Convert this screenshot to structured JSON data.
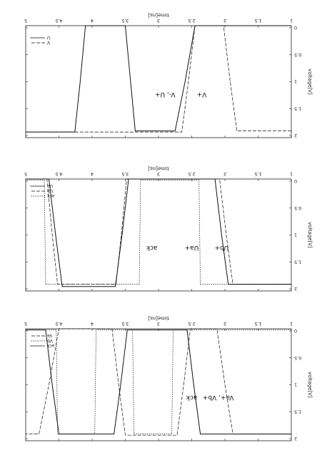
{
  "chart_data": [
    {
      "type": "line",
      "xlabel": "time[ns]",
      "ylabel": "voltage[V]",
      "xlim": [
        1,
        5
      ],
      "ylim": [
        0,
        5
      ],
      "x_ticks": [
        "1",
        "1.5",
        "2",
        "2.5",
        "3",
        "3.5",
        "4",
        "4.5",
        "5"
      ],
      "y_ticks": [
        "0",
        "0.5",
        "1",
        "1.5",
        "2"
      ],
      "annotations": [
        {
          "text": "Va+, Vb+",
          "x": 2.1,
          "y": 3.0
        },
        {
          "text": "ack",
          "x": 2.5,
          "y": 3.0
        }
      ],
      "legend": "bottom-right",
      "series": [
        {
          "name": "ack",
          "style": "solid",
          "x": [
            1.0,
            2.37,
            2.47,
            2.57,
            3.47,
            3.57,
            3.67,
            4.5,
            4.6,
            4.7,
            5.0
          ],
          "y": [
            4.7,
            4.7,
            2.5,
            0.05,
            0.05,
            2.5,
            4.7,
            4.7,
            2.5,
            0.05,
            0.05
          ]
        },
        {
          "name": "Vb",
          "style": "dotted",
          "x": [
            1.0,
            2.78,
            2.8,
            3.37,
            3.39,
            3.94,
            3.96,
            4.52,
            4.54,
            5.0
          ],
          "y": [
            0.05,
            0.05,
            4.7,
            4.7,
            0.05,
            0.05,
            4.7,
            4.7,
            0.05,
            0.05
          ]
        },
        {
          "name": "Va",
          "style": "dashed",
          "x": [
            1.0,
            1.88,
            2.0,
            2.12,
            2.52,
            2.62,
            2.72,
            3.5,
            3.6,
            3.7,
            4.5,
            4.65,
            4.8,
            5.0
          ],
          "y": [
            4.7,
            4.7,
            2.5,
            0.0,
            0.0,
            2.5,
            4.75,
            4.75,
            2.5,
            0.0,
            0.0,
            2.5,
            4.7,
            4.7
          ]
        }
      ]
    },
    {
      "type": "line",
      "xlabel": "time[ns]",
      "ylabel": "voltage[V]",
      "xlim": [
        1,
        5
      ],
      "ylim": [
        0,
        5
      ],
      "x_ticks": [
        "1",
        "1.5",
        "2",
        "2.5",
        "3",
        "3.5",
        "4",
        "4.5",
        "5"
      ],
      "y_ticks": [
        "0",
        "0.5",
        "1",
        "1.5",
        "2"
      ],
      "annotations": [
        {
          "text": "Ub+",
          "x": 2.05,
          "y": 3.0
        },
        {
          "text": "Ua+",
          "x": 2.5,
          "y": 3.0
        },
        {
          "text": "ack",
          "x": 3.1,
          "y": 3.0
        }
      ],
      "legend": "bottom-right",
      "series": [
        {
          "name": "ack",
          "style": "dotted",
          "x": [
            1.0,
            2.37,
            2.39,
            3.27,
            3.29,
            4.7,
            4.72,
            5.0
          ],
          "y": [
            4.7,
            4.7,
            0.05,
            0.05,
            4.7,
            4.7,
            0.05,
            0.05
          ]
        },
        {
          "name": "Ub",
          "style": "dashed",
          "x": [
            1.0,
            1.88,
            1.98,
            2.08,
            3.48,
            3.56,
            3.64,
            4.52,
            4.6,
            4.68,
            5.0
          ],
          "y": [
            4.7,
            4.7,
            2.5,
            0.0,
            0.0,
            2.5,
            4.7,
            4.7,
            2.5,
            0.0,
            0.0
          ]
        },
        {
          "name": "Ua",
          "style": "solid",
          "x": [
            1.0,
            1.95,
            2.05,
            2.15,
            3.45,
            3.55,
            3.65,
            4.45,
            4.55,
            4.65,
            5.0
          ],
          "y": [
            4.7,
            4.7,
            2.5,
            0.0,
            0.0,
            2.5,
            4.8,
            4.8,
            2.5,
            0.0,
            0.0
          ]
        }
      ]
    },
    {
      "type": "line",
      "xlabel": "time[ns]",
      "ylabel": "voltage[V]",
      "xlim": [
        1,
        5
      ],
      "ylim": [
        0,
        5
      ],
      "x_ticks": [
        "1",
        "1.5",
        "2",
        "2.5",
        "3",
        "3.5",
        "4",
        "4.5",
        "5"
      ],
      "y_ticks": [
        "0",
        "0.5",
        "1",
        "1.5",
        "2"
      ],
      "annotations": [
        {
          "text": "V+",
          "x": 2.35,
          "y": 3.0
        },
        {
          "text": "V-, U+",
          "x": 2.9,
          "y": 3.0
        }
      ],
      "legend": "bottom-right",
      "series": [
        {
          "name": "V",
          "style": "dashed",
          "x": [
            1.0,
            1.82,
            1.92,
            2.02,
            2.45,
            2.55,
            2.65,
            5.0
          ],
          "y": [
            4.7,
            4.7,
            2.5,
            0.0,
            0.0,
            2.5,
            4.75,
            4.75
          ]
        },
        {
          "name": "U",
          "style": "solid",
          "x": [
            1.0,
            2.45,
            2.6,
            2.75,
            3.35,
            3.42,
            3.5,
            4.1,
            4.18,
            4.26,
            5.0
          ],
          "y": [
            0.0,
            0.0,
            2.5,
            4.7,
            4.7,
            2.5,
            0.0,
            0.0,
            2.5,
            4.75,
            4.75
          ]
        }
      ]
    }
  ]
}
